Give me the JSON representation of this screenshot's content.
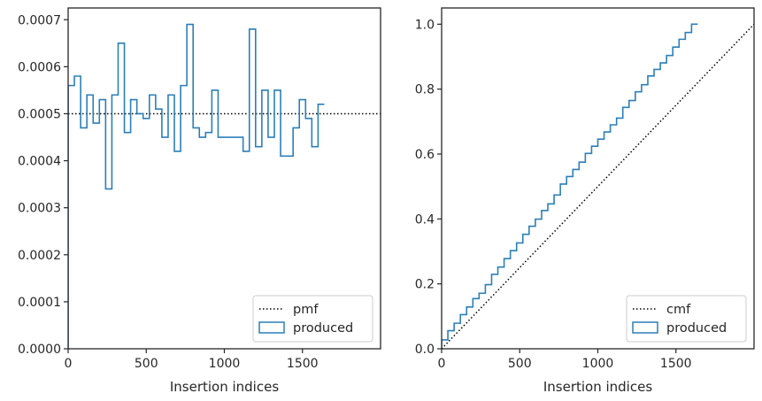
{
  "chart_data": [
    {
      "type": "line",
      "xlabel": "Insertion indices",
      "ylabel": "",
      "xlim": [
        0,
        2000
      ],
      "ylim": [
        0,
        0.000725
      ],
      "xticks": [
        0,
        500,
        1000,
        1500
      ],
      "xtick_labels": [
        "0",
        "500",
        "1000",
        "1500"
      ],
      "yticks": [
        0,
        0.0001,
        0.0002,
        0.0003,
        0.0004,
        0.0005,
        0.0006,
        0.0007
      ],
      "ytick_labels": [
        "0.0000",
        "0.0001",
        "0.0002",
        "0.0003",
        "0.0004",
        "0.0005",
        "0.0006",
        "0.0007"
      ],
      "legend_position": "lower-right",
      "series": [
        {
          "name": "pmf",
          "style": "dotted",
          "color": "#000000",
          "x": [
            0,
            2000
          ],
          "values": [
            0.0005,
            0.0005
          ]
        },
        {
          "name": "produced",
          "style": "step",
          "color": "#2c7fb8",
          "bin_width": 40,
          "values": [
            0.00056,
            0.00058,
            0.00047,
            0.00054,
            0.00048,
            0.00053,
            0.00034,
            0.00054,
            0.00065,
            0.00046,
            0.00053,
            0.0005,
            0.00049,
            0.00054,
            0.00051,
            0.00045,
            0.00054,
            0.00042,
            0.00056,
            0.00069,
            0.00047,
            0.00045,
            0.00046,
            0.00055,
            0.00045,
            0.00045,
            0.00045,
            0.00045,
            0.00042,
            0.00068,
            0.00043,
            0.00055,
            0.00045,
            0.00055,
            0.00041,
            0.00041,
            0.00047,
            0.00053,
            0.00049,
            0.00043,
            0.00052
          ]
        }
      ]
    },
    {
      "type": "line",
      "xlabel": "Insertion indices",
      "ylabel": "",
      "xlim": [
        0,
        2000
      ],
      "ylim": [
        0,
        1.05
      ],
      "xticks": [
        0,
        500,
        1000,
        1500
      ],
      "xtick_labels": [
        "0",
        "500",
        "1000",
        "1500"
      ],
      "yticks": [
        0,
        0.2,
        0.4,
        0.6,
        0.8,
        1.0
      ],
      "ytick_labels": [
        "0.0",
        "0.2",
        "0.4",
        "0.6",
        "0.8",
        "1.0"
      ],
      "legend_position": "lower-right",
      "series": [
        {
          "name": "cmf",
          "style": "dotted",
          "color": "#000000",
          "x": [
            0,
            2000
          ],
          "values": [
            0,
            1
          ]
        },
        {
          "name": "produced",
          "style": "step",
          "color": "#2c7fb8",
          "derived_from": "cumulative sum of left-panel produced values"
        }
      ]
    }
  ],
  "colors": {
    "produced": "#2c7fb8",
    "reference": "#000000",
    "axes": "#262626"
  }
}
